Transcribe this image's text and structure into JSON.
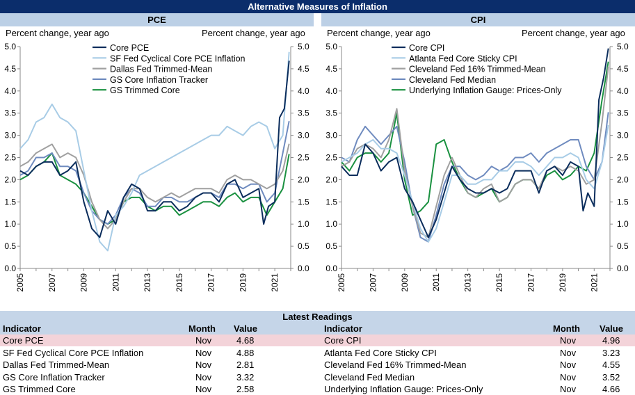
{
  "title": "Alternative Measures of Inflation",
  "panels": [
    {
      "name": "PCE",
      "ylabel_left": "Percent change, year ago",
      "ylabel_right": "Percent change, year ago"
    },
    {
      "name": "CPI",
      "ylabel_left": "Percent change, year ago",
      "ylabel_right": "Percent change, year ago"
    }
  ],
  "chart_data": [
    {
      "type": "line",
      "title": "PCE",
      "xlabel": "",
      "ylabel": "Percent change, year ago",
      "xlim": [
        2005,
        2022
      ],
      "ylim": [
        0,
        5
      ],
      "x_ticks": [
        "2005",
        "2007",
        "2009",
        "2011",
        "2013",
        "2015",
        "2017",
        "2019",
        "2021"
      ],
      "y_ticks": [
        "0.0",
        "0.5",
        "1.0",
        "1.5",
        "2.0",
        "2.5",
        "3.0",
        "3.5",
        "4.0",
        "4.5",
        "5.0"
      ],
      "series": [
        {
          "name": "Core PCE",
          "color": "#0b2d5c",
          "x": [
            2005,
            2005.5,
            2006,
            2006.5,
            2007,
            2007.5,
            2008,
            2008.5,
            2009,
            2009.5,
            2010,
            2010.5,
            2011,
            2011.5,
            2012,
            2012.5,
            2013,
            2013.5,
            2014,
            2014.5,
            2015,
            2015.5,
            2016,
            2016.5,
            2017,
            2017.5,
            2018,
            2018.5,
            2019,
            2019.5,
            2020,
            2020.3,
            2020.6,
            2021,
            2021.3,
            2021.6,
            2021.9
          ],
          "y": [
            2.2,
            2.1,
            2.3,
            2.4,
            2.4,
            2.1,
            2.2,
            2.4,
            1.5,
            0.9,
            0.7,
            1.3,
            1.0,
            1.6,
            1.9,
            1.8,
            1.3,
            1.3,
            1.5,
            1.5,
            1.3,
            1.4,
            1.6,
            1.7,
            1.7,
            1.5,
            1.9,
            2.0,
            1.6,
            1.7,
            1.8,
            1.0,
            1.4,
            1.5,
            3.4,
            3.6,
            4.68
          ]
        },
        {
          "name": "SF Fed Cyclical Core PCE Inflation",
          "color": "#a8cce6",
          "x": [
            2005,
            2005.5,
            2006,
            2006.5,
            2007,
            2007.5,
            2008,
            2008.5,
            2009,
            2009.5,
            2010,
            2010.5,
            2011,
            2011.5,
            2012,
            2012.5,
            2013,
            2013.5,
            2014,
            2014.5,
            2015,
            2015.5,
            2016,
            2016.5,
            2017,
            2017.5,
            2018,
            2018.5,
            2019,
            2019.5,
            2020,
            2020.5,
            2021,
            2021.5,
            2021.9
          ],
          "y": [
            2.7,
            2.9,
            3.3,
            3.4,
            3.7,
            3.4,
            3.3,
            3.1,
            2.2,
            1.3,
            0.6,
            0.4,
            1.2,
            1.4,
            1.7,
            2.1,
            2.2,
            2.3,
            2.4,
            2.5,
            2.6,
            2.7,
            2.8,
            2.9,
            3.0,
            3.0,
            3.2,
            3.1,
            3.0,
            3.2,
            3.3,
            3.2,
            2.7,
            3.0,
            4.88
          ]
        },
        {
          "name": "Dallas Fed Trimmed-Mean",
          "color": "#a0a0a0",
          "x": [
            2005,
            2005.5,
            2006,
            2006.5,
            2007,
            2007.5,
            2008,
            2008.5,
            2009,
            2009.5,
            2010,
            2010.5,
            2011,
            2011.5,
            2012,
            2012.5,
            2013,
            2013.5,
            2014,
            2014.5,
            2015,
            2015.5,
            2016,
            2016.5,
            2017,
            2017.5,
            2018,
            2018.5,
            2019,
            2019.5,
            2020,
            2020.5,
            2021,
            2021.5,
            2021.9
          ],
          "y": [
            2.3,
            2.4,
            2.6,
            2.7,
            2.8,
            2.5,
            2.6,
            2.5,
            2.1,
            1.5,
            1.1,
            0.9,
            1.1,
            1.5,
            1.8,
            1.8,
            1.6,
            1.5,
            1.6,
            1.7,
            1.6,
            1.7,
            1.8,
            1.8,
            1.8,
            1.7,
            2.0,
            2.1,
            2.0,
            2.0,
            1.9,
            1.8,
            1.9,
            2.2,
            2.81
          ]
        },
        {
          "name": "GS Core Inflation Tracker",
          "color": "#6f8bbf",
          "x": [
            2005,
            2005.5,
            2006,
            2006.5,
            2007,
            2007.5,
            2008,
            2008.5,
            2009,
            2009.5,
            2010,
            2010.5,
            2011,
            2011.5,
            2012,
            2012.5,
            2013,
            2013.5,
            2014,
            2014.5,
            2015,
            2015.5,
            2016,
            2016.5,
            2017,
            2017.5,
            2018,
            2018.5,
            2019,
            2019.5,
            2020,
            2020.5,
            2021,
            2021.5,
            2021.9
          ],
          "y": [
            2.1,
            2.2,
            2.5,
            2.5,
            2.6,
            2.3,
            2.3,
            2.2,
            1.7,
            1.3,
            1.1,
            1.0,
            1.2,
            1.6,
            1.8,
            1.7,
            1.4,
            1.4,
            1.6,
            1.6,
            1.5,
            1.5,
            1.6,
            1.7,
            1.7,
            1.6,
            1.9,
            1.9,
            1.8,
            1.9,
            1.9,
            1.5,
            1.7,
            2.6,
            3.32
          ]
        },
        {
          "name": "GS Trimmed Core",
          "color": "#1a9140",
          "x": [
            2005,
            2005.5,
            2006,
            2006.5,
            2007,
            2007.5,
            2008,
            2008.5,
            2009,
            2009.5,
            2010,
            2010.5,
            2011,
            2011.5,
            2012,
            2012.5,
            2013,
            2013.5,
            2014,
            2014.5,
            2015,
            2015.5,
            2016,
            2016.5,
            2017,
            2017.5,
            2018,
            2018.5,
            2019,
            2019.5,
            2020,
            2020.5,
            2021,
            2021.5,
            2021.9
          ],
          "y": [
            2.0,
            2.1,
            2.3,
            2.4,
            2.6,
            2.1,
            2.0,
            1.9,
            1.7,
            1.4,
            1.1,
            1.0,
            1.1,
            1.5,
            1.6,
            1.6,
            1.4,
            1.3,
            1.4,
            1.4,
            1.2,
            1.3,
            1.4,
            1.5,
            1.5,
            1.4,
            1.6,
            1.7,
            1.5,
            1.6,
            1.6,
            1.2,
            1.5,
            1.8,
            2.58
          ]
        }
      ]
    },
    {
      "type": "line",
      "title": "CPI",
      "xlabel": "",
      "ylabel": "Percent change, year ago",
      "xlim": [
        2005,
        2022
      ],
      "ylim": [
        0,
        5
      ],
      "x_ticks": [
        "2005",
        "2007",
        "2009",
        "2011",
        "2013",
        "2015",
        "2017",
        "2019",
        "2021"
      ],
      "y_ticks": [
        "0.0",
        "0.5",
        "1.0",
        "1.5",
        "2.0",
        "2.5",
        "3.0",
        "3.5",
        "4.0",
        "4.5",
        "5.0"
      ],
      "series": [
        {
          "name": "Core CPI",
          "color": "#0b2d5c",
          "x": [
            2005,
            2005.5,
            2006,
            2006.5,
            2007,
            2007.5,
            2008,
            2008.5,
            2009,
            2009.5,
            2010,
            2010.5,
            2011,
            2011.5,
            2012,
            2012.5,
            2013,
            2013.5,
            2014,
            2014.5,
            2015,
            2015.5,
            2016,
            2016.5,
            2017,
            2017.5,
            2018,
            2018.5,
            2019,
            2019.5,
            2020,
            2020.3,
            2020.6,
            2021,
            2021.3,
            2021.6,
            2021.9
          ],
          "y": [
            2.3,
            2.1,
            2.1,
            2.8,
            2.6,
            2.2,
            2.4,
            2.5,
            1.8,
            1.5,
            1.1,
            0.7,
            1.1,
            1.7,
            2.3,
            2.0,
            1.8,
            1.7,
            1.7,
            1.8,
            1.7,
            1.8,
            2.2,
            2.2,
            2.2,
            1.7,
            2.2,
            2.3,
            2.1,
            2.4,
            2.3,
            1.3,
            1.7,
            1.4,
            3.8,
            4.3,
            4.96
          ]
        },
        {
          "name": "Atlanta Fed Core Sticky CPI",
          "color": "#a8cce6",
          "x": [
            2005,
            2005.5,
            2006,
            2006.5,
            2007,
            2007.5,
            2008,
            2008.5,
            2009,
            2009.5,
            2010,
            2010.5,
            2011,
            2011.5,
            2012,
            2012.5,
            2013,
            2013.5,
            2014,
            2014.5,
            2015,
            2015.5,
            2016,
            2016.5,
            2017,
            2017.5,
            2018,
            2018.5,
            2019,
            2019.5,
            2020,
            2020.5,
            2021,
            2021.5,
            2021.9
          ],
          "y": [
            2.4,
            2.5,
            2.6,
            2.8,
            2.9,
            2.7,
            2.7,
            2.6,
            2.1,
            1.5,
            0.9,
            0.6,
            0.9,
            1.5,
            2.1,
            2.1,
            1.9,
            1.9,
            2.0,
            2.0,
            2.2,
            2.2,
            2.4,
            2.4,
            2.3,
            2.1,
            2.3,
            2.5,
            2.5,
            2.6,
            2.5,
            2.0,
            1.8,
            2.4,
            3.23
          ]
        },
        {
          "name": "Cleveland Fed 16% Trimmed-Mean",
          "color": "#a0a0a0",
          "x": [
            2005,
            2005.5,
            2006,
            2006.5,
            2007,
            2007.5,
            2008,
            2008.5,
            2009,
            2009.5,
            2010,
            2010.5,
            2011,
            2011.5,
            2012,
            2012.5,
            2013,
            2013.5,
            2014,
            2014.5,
            2015,
            2015.5,
            2016,
            2016.5,
            2017,
            2017.5,
            2018,
            2018.5,
            2019,
            2019.5,
            2020,
            2020.5,
            2021,
            2021.5,
            2021.9
          ],
          "y": [
            2.3,
            2.4,
            2.7,
            2.8,
            2.7,
            2.5,
            2.9,
            3.6,
            2.2,
            1.4,
            0.8,
            0.7,
            1.4,
            2.1,
            2.5,
            2.1,
            1.7,
            1.6,
            1.8,
            1.9,
            1.5,
            1.6,
            1.9,
            2.0,
            2.0,
            1.8,
            2.2,
            2.3,
            2.2,
            2.3,
            2.2,
            1.9,
            2.0,
            3.3,
            4.55
          ]
        },
        {
          "name": "Cleveland Fed Median",
          "color": "#6f8bbf",
          "x": [
            2005,
            2005.5,
            2006,
            2006.5,
            2007,
            2007.5,
            2008,
            2008.5,
            2009,
            2009.5,
            2010,
            2010.5,
            2011,
            2011.5,
            2012,
            2012.5,
            2013,
            2013.5,
            2014,
            2014.5,
            2015,
            2015.5,
            2016,
            2016.5,
            2017,
            2017.5,
            2018,
            2018.5,
            2019,
            2019.5,
            2020,
            2020.5,
            2021,
            2021.5,
            2021.9
          ],
          "y": [
            2.5,
            2.4,
            2.9,
            3.2,
            3.0,
            2.8,
            3.0,
            3.2,
            2.4,
            1.4,
            0.7,
            0.6,
            1.2,
            1.9,
            2.3,
            2.3,
            2.1,
            2.0,
            2.1,
            2.3,
            2.2,
            2.3,
            2.5,
            2.5,
            2.6,
            2.4,
            2.6,
            2.7,
            2.8,
            2.9,
            2.9,
            2.3,
            2.0,
            2.4,
            3.52
          ]
        },
        {
          "name": "Underlying Inflation Gauge: Prices-Only",
          "color": "#1a9140",
          "x": [
            2005,
            2005.5,
            2006,
            2006.5,
            2007,
            2007.5,
            2008,
            2008.5,
            2009,
            2009.5,
            2010,
            2010.5,
            2011,
            2011.5,
            2012,
            2012.5,
            2013,
            2013.5,
            2014,
            2014.5,
            2015,
            2015.5,
            2016,
            2016.5,
            2017,
            2017.5,
            2018,
            2018.5,
            2019,
            2019.5,
            2020,
            2020.5,
            2021,
            2021.5,
            2021.9
          ],
          "y": [
            2.4,
            2.2,
            2.5,
            2.6,
            2.6,
            2.4,
            2.6,
            3.5,
            2.0,
            1.2,
            1.3,
            1.5,
            2.8,
            2.9,
            2.4,
            2.0,
            1.7,
            1.6,
            1.7,
            1.8,
            1.5,
            1.6,
            1.9,
            2.0,
            2.0,
            1.8,
            2.1,
            2.2,
            2.0,
            2.1,
            2.3,
            2.2,
            2.6,
            3.8,
            4.66
          ]
        }
      ]
    }
  ],
  "latest": {
    "title": "Latest Readings",
    "columns": {
      "indicator": "Indicator",
      "month": "Month",
      "value": "Value"
    },
    "left": [
      {
        "indicator": "Core PCE",
        "month": "Nov",
        "value": "4.68"
      },
      {
        "indicator": "SF Fed Cyclical Core PCE Inflation",
        "month": "Nov",
        "value": "4.88"
      },
      {
        "indicator": "Dallas Fed Trimmed-Mean",
        "month": "Nov",
        "value": "2.81"
      },
      {
        "indicator": "GS Core Inflation Tracker",
        "month": "Nov",
        "value": "3.32"
      },
      {
        "indicator": "GS Trimmed Core",
        "month": "Nov",
        "value": "2.58"
      }
    ],
    "right": [
      {
        "indicator": "Core CPI",
        "month": "Nov",
        "value": "4.96"
      },
      {
        "indicator": "Atlanta Fed Core Sticky CPI",
        "month": "Nov",
        "value": "3.23"
      },
      {
        "indicator": "Cleveland Fed 16% Trimmed-Mean",
        "month": "Nov",
        "value": "4.55"
      },
      {
        "indicator": "Cleveland Fed Median",
        "month": "Nov",
        "value": "3.52"
      },
      {
        "indicator": "Underlying Inflation Gauge: Prices-Only",
        "month": "Nov",
        "value": "4.66"
      }
    ]
  }
}
